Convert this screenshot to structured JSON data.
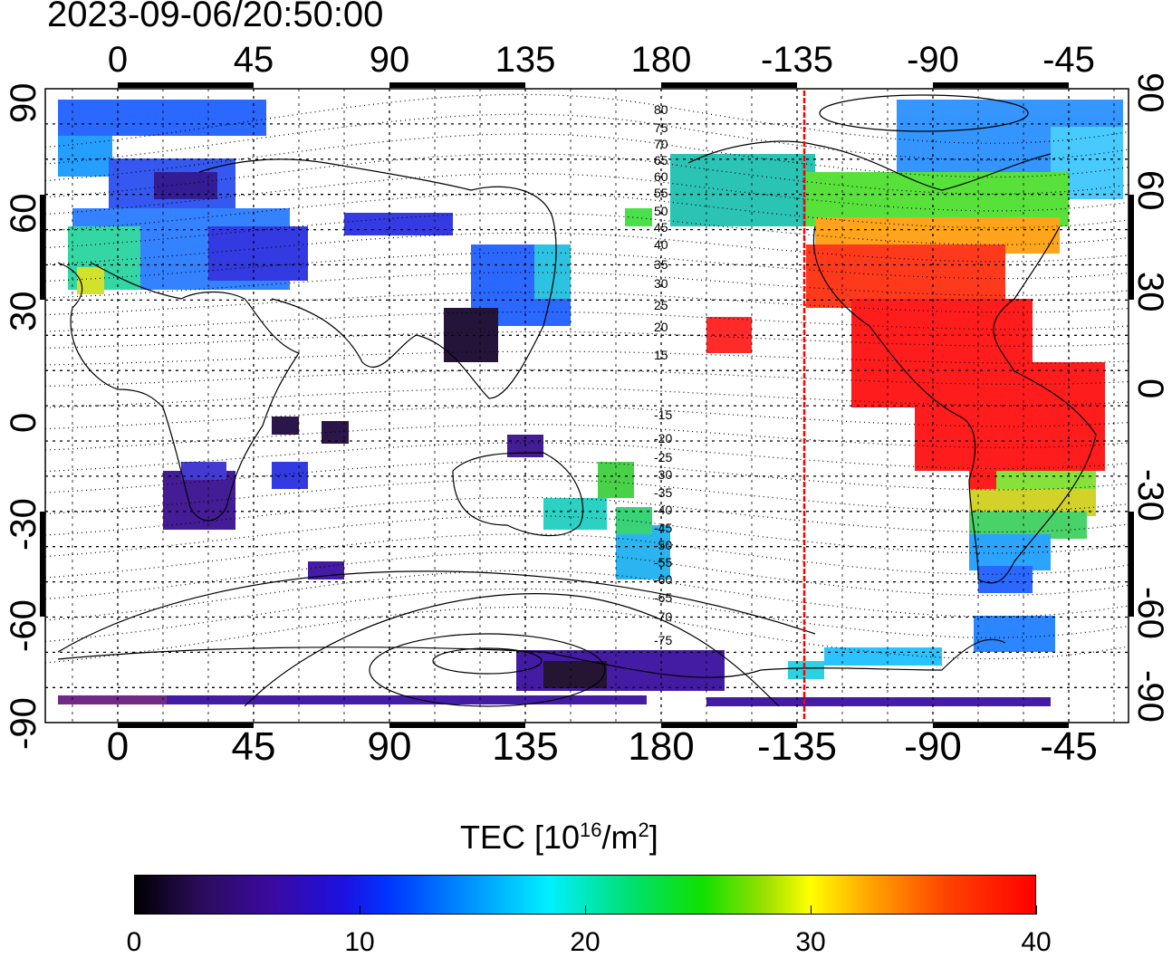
{
  "timestamp": "2023-09-06/20:50:00",
  "top_lon_labels": [
    "0",
    "45",
    "90",
    "135",
    "180",
    "-135",
    "-90",
    "-45"
  ],
  "bottom_lon_labels": [
    "0",
    "45",
    "90",
    "135",
    "180",
    "-135",
    "-90",
    "-45"
  ],
  "left_lat_labels": [
    "90",
    "60",
    "30",
    "0",
    "-30",
    "-60",
    "-90"
  ],
  "right_lat_labels": [
    "90",
    "60",
    "30",
    "0",
    "-30",
    "-60",
    "-90"
  ],
  "contour_labels": [
    "80",
    "75",
    "70",
    "65",
    "60",
    "55",
    "50",
    "45",
    "40",
    "35",
    "30",
    "25",
    "20",
    "15",
    "-15",
    "-20",
    "-25",
    "-30",
    "-35",
    "-40",
    "-45",
    "-50",
    "-55",
    "-60",
    "-65",
    "-70",
    "-75"
  ],
  "colorbar": {
    "title_prefix": "TEC  [10",
    "title_sup1": "16",
    "title_mid": "/m",
    "title_sup2": "2",
    "title_suffix": "]",
    "ticks": [
      "0",
      "10",
      "20",
      "30",
      "40"
    ],
    "range": [
      0,
      40
    ]
  },
  "map": {
    "lon_range": [
      -20,
      340
    ],
    "lat_range": [
      -90,
      90
    ],
    "terminator_lon": -137.5,
    "terminator_color": "#ff0000"
  }
}
